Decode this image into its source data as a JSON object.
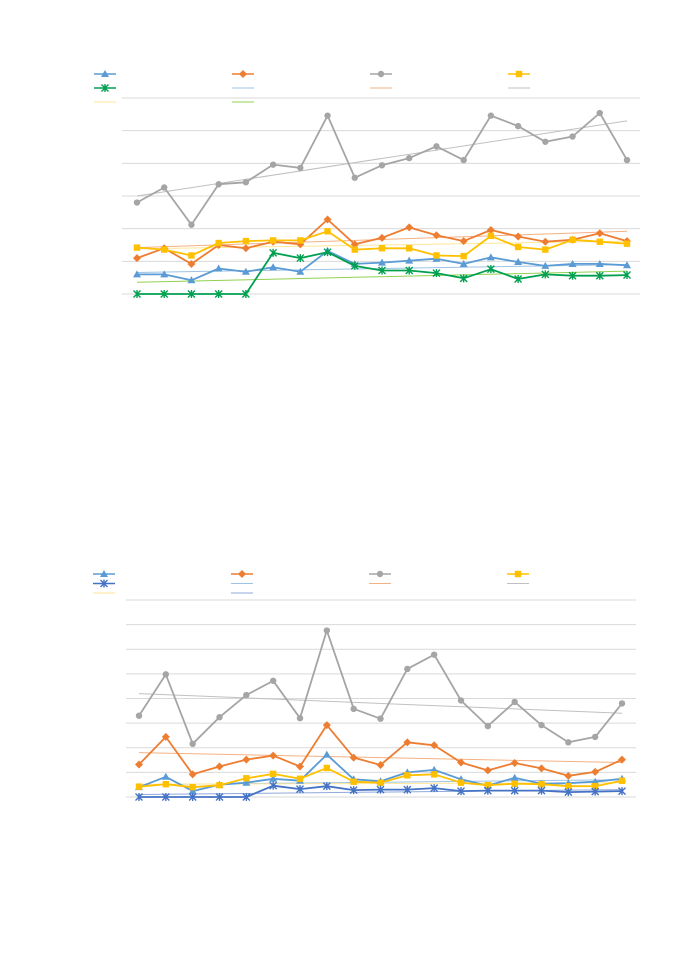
{
  "chart_data": [
    {
      "type": "line",
      "ylim": [
        0,
        6
      ],
      "grid": true,
      "legend_position": "top",
      "x": [
        1,
        2,
        3,
        4,
        5,
        6,
        7,
        8,
        9,
        10,
        11,
        12,
        13,
        14,
        15,
        16,
        17,
        18,
        19
      ],
      "series": [
        {
          "marker": "triangle",
          "color": "#5B9BD5",
          "values": [
            0.6,
            0.6,
            0.42,
            0.78,
            0.68,
            0.82,
            0.68,
            1.32,
            0.92,
            0.96,
            1.02,
            1.08,
            0.92,
            1.12,
            0.98,
            0.86,
            0.92,
            0.92,
            0.88
          ]
        },
        {
          "marker": "diamond",
          "color": "#ED7D31",
          "values": [
            1.1,
            1.4,
            0.92,
            1.5,
            1.4,
            1.6,
            1.52,
            2.28,
            1.52,
            1.72,
            2.04,
            1.8,
            1.62,
            1.96,
            1.76,
            1.6,
            1.66,
            1.86,
            1.62
          ]
        },
        {
          "marker": "circle",
          "color": "#A5A5A5",
          "values": [
            2.8,
            3.26,
            2.12,
            3.36,
            3.42,
            3.96,
            3.86,
            5.46,
            3.56,
            3.94,
            4.16,
            4.52,
            4.1,
            5.46,
            5.14,
            4.66,
            4.82,
            5.54,
            4.1
          ]
        },
        {
          "marker": "square",
          "color": "#FFC000",
          "values": [
            1.42,
            1.36,
            1.18,
            1.56,
            1.62,
            1.64,
            1.64,
            1.92,
            1.36,
            1.4,
            1.4,
            1.18,
            1.16,
            1.78,
            1.44,
            1.36,
            1.66,
            1.6,
            1.54
          ]
        },
        {
          "marker": "star",
          "color": "#00A050",
          "values": [
            0,
            0,
            0,
            0,
            0,
            1.26,
            1.1,
            1.28,
            0.86,
            0.72,
            0.72,
            0.64,
            0.48,
            0.76,
            0.46,
            0.6,
            0.56,
            0.56,
            0.58
          ]
        }
      ],
      "trendlines": [
        {
          "color": "#9DC3E6",
          "values": [
            0.66,
            0.9
          ]
        },
        {
          "color": "#F4B183",
          "values": [
            1.42,
            1.92
          ]
        },
        {
          "color": "#C0C0C0",
          "values": [
            3.0,
            5.3
          ]
        },
        {
          "color": "#FFE699",
          "values": [
            1.38,
            1.62
          ]
        },
        {
          "color": "#92D050",
          "values": [
            0.36,
            0.7
          ]
        }
      ]
    },
    {
      "type": "line",
      "ylim": [
        0,
        8
      ],
      "grid": true,
      "legend_position": "top",
      "x": [
        1,
        2,
        3,
        4,
        5,
        6,
        7,
        8,
        9,
        10,
        11,
        12,
        13,
        14,
        15,
        16,
        17,
        18,
        19
      ],
      "series": [
        {
          "marker": "triangle",
          "color": "#5B9BD5",
          "values": [
            0.4,
            0.82,
            0.24,
            0.5,
            0.58,
            0.74,
            0.66,
            1.72,
            0.72,
            0.64,
            1.0,
            1.1,
            0.72,
            0.46,
            0.78,
            0.54,
            0.56,
            0.62,
            0.74
          ]
        },
        {
          "marker": "diamond",
          "color": "#ED7D31",
          "values": [
            1.32,
            2.44,
            0.92,
            1.24,
            1.52,
            1.68,
            1.24,
            2.92,
            1.6,
            1.3,
            2.22,
            2.1,
            1.4,
            1.08,
            1.38,
            1.16,
            0.86,
            1.02,
            1.52
          ]
        },
        {
          "marker": "circle",
          "color": "#A5A5A5",
          "values": [
            3.3,
            4.98,
            2.16,
            3.24,
            4.14,
            4.72,
            3.2,
            6.76,
            3.58,
            3.18,
            5.2,
            5.78,
            3.92,
            2.88,
            3.86,
            2.92,
            2.22,
            2.44,
            3.8
          ]
        },
        {
          "marker": "square",
          "color": "#FFC000",
          "values": [
            0.42,
            0.52,
            0.4,
            0.48,
            0.76,
            0.94,
            0.74,
            1.18,
            0.62,
            0.58,
            0.88,
            0.92,
            0.58,
            0.48,
            0.54,
            0.52,
            0.44,
            0.44,
            0.66
          ]
        },
        {
          "marker": "star",
          "color": "#4472C4",
          "values": [
            0,
            0,
            0,
            0,
            0,
            0.46,
            0.32,
            0.44,
            0.28,
            0.3,
            0.3,
            0.36,
            0.24,
            0.26,
            0.26,
            0.26,
            0.2,
            0.22,
            0.24
          ]
        }
      ],
      "trendlines": [
        {
          "color": "#9DC3E6",
          "values": [
            0.5,
            0.7
          ]
        },
        {
          "color": "#F4B183",
          "values": [
            1.8,
            1.4
          ]
        },
        {
          "color": "#C0C0C0",
          "values": [
            4.2,
            3.4
          ]
        },
        {
          "color": "#FFE699",
          "values": [
            0.52,
            0.58
          ]
        },
        {
          "color": "#8FAADC",
          "values": [
            0.1,
            0.3
          ]
        }
      ]
    }
  ]
}
